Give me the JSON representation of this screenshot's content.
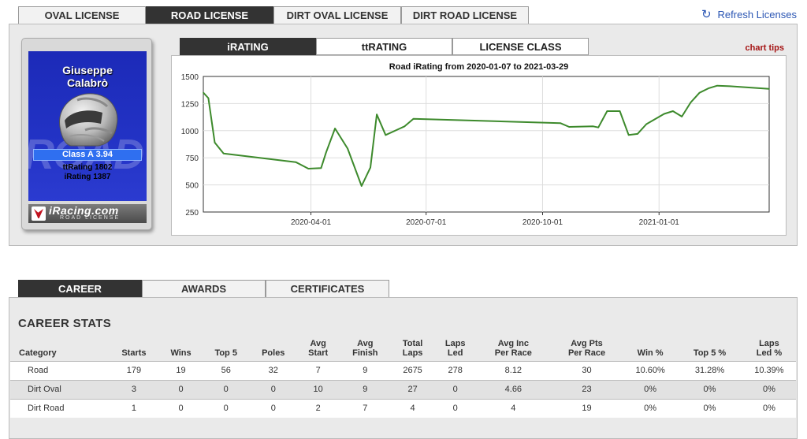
{
  "license_tabs": [
    {
      "label": "OVAL LICENSE",
      "active": false
    },
    {
      "label": "ROAD LICENSE",
      "active": true
    },
    {
      "label": "DIRT OVAL LICENSE",
      "active": false
    },
    {
      "label": "DIRT ROAD LICENSE",
      "active": false
    }
  ],
  "refresh_label": "Refresh Licenses",
  "card": {
    "name_line1": "Giuseppe",
    "name_line2": "Calabrò",
    "big_text": "ROAD",
    "class_text": "Class A 3.94",
    "tt_rating": "ttRating 1802",
    "irating": "iRating 1387",
    "logo_text": "iRacing.com",
    "logo_sub": "ROAD LICENSE"
  },
  "chart_tabs": [
    {
      "label": "iRATING",
      "active": true
    },
    {
      "label": "ttRATING",
      "active": false
    },
    {
      "label": "LICENSE CLASS",
      "active": false
    }
  ],
  "chart_tips": "chart tips",
  "chart_data": {
    "type": "line",
    "title": "Road iRating from 2020-01-07 to 2021-03-29",
    "xlabel": "",
    "ylabel": "",
    "ylim": [
      250,
      1500
    ],
    "yticks": [
      250,
      500,
      750,
      1000,
      1250,
      1500
    ],
    "xlim": [
      "2020-01-07",
      "2021-03-29"
    ],
    "xticks": [
      "2020-04-01",
      "2020-07-01",
      "2020-10-01",
      "2021-01-01"
    ],
    "grid": true,
    "line_color": "#3d8a2c",
    "series": [
      {
        "x": [
          "2020-01-07",
          "2020-01-11",
          "2020-01-16",
          "2020-01-23",
          "2020-03-20",
          "2020-03-30",
          "2020-04-09",
          "2020-04-13",
          "2020-04-20",
          "2020-04-30",
          "2020-05-11",
          "2020-05-18",
          "2020-05-23",
          "2020-05-30",
          "2020-06-14",
          "2020-06-21",
          "2020-10-15",
          "2020-10-22",
          "2020-11-10",
          "2020-11-14",
          "2020-11-21",
          "2020-12-01",
          "2020-12-08",
          "2020-12-15",
          "2020-12-22",
          "2021-01-05",
          "2021-01-12",
          "2021-01-19",
          "2021-01-26",
          "2021-02-02",
          "2021-02-09",
          "2021-02-16",
          "2021-02-26",
          "2021-03-29"
        ],
        "y": [
          1350,
          1300,
          890,
          790,
          710,
          650,
          655,
          800,
          1020,
          835,
          490,
          660,
          1150,
          960,
          1040,
          1110,
          1070,
          1035,
          1040,
          1030,
          1180,
          1180,
          960,
          970,
          1060,
          1155,
          1180,
          1130,
          1260,
          1350,
          1390,
          1415,
          1410,
          1385
        ]
      }
    ]
  },
  "career_tabs": [
    {
      "label": "CAREER",
      "active": true
    },
    {
      "label": "AWARDS",
      "active": false
    },
    {
      "label": "CERTIFICATES",
      "active": false
    }
  ],
  "career_heading": "CAREER STATS",
  "stats_columns": [
    {
      "l1": "",
      "l2": "Category"
    },
    {
      "l1": "",
      "l2": "Starts"
    },
    {
      "l1": "",
      "l2": "Wins"
    },
    {
      "l1": "",
      "l2": "Top 5"
    },
    {
      "l1": "",
      "l2": "Poles"
    },
    {
      "l1": "Avg",
      "l2": "Start"
    },
    {
      "l1": "Avg",
      "l2": "Finish"
    },
    {
      "l1": "Total",
      "l2": "Laps"
    },
    {
      "l1": "Laps",
      "l2": "Led"
    },
    {
      "l1": "Avg Inc",
      "l2": "Per Race"
    },
    {
      "l1": "Avg Pts",
      "l2": "Per Race"
    },
    {
      "l1": "",
      "l2": "Win %"
    },
    {
      "l1": "",
      "l2": "Top 5 %"
    },
    {
      "l1": "Laps",
      "l2": "Led %"
    }
  ],
  "stats_rows": [
    [
      "Road",
      "179",
      "19",
      "56",
      "32",
      "7",
      "9",
      "2675",
      "278",
      "8.12",
      "30",
      "10.60%",
      "31.28%",
      "10.39%"
    ],
    [
      "Dirt Oval",
      "3",
      "0",
      "0",
      "0",
      "10",
      "9",
      "27",
      "0",
      "4.66",
      "23",
      "0%",
      "0%",
      "0%"
    ],
    [
      "Dirt Road",
      "1",
      "0",
      "0",
      "0",
      "2",
      "7",
      "4",
      "0",
      "4",
      "19",
      "0%",
      "0%",
      "0%"
    ]
  ]
}
